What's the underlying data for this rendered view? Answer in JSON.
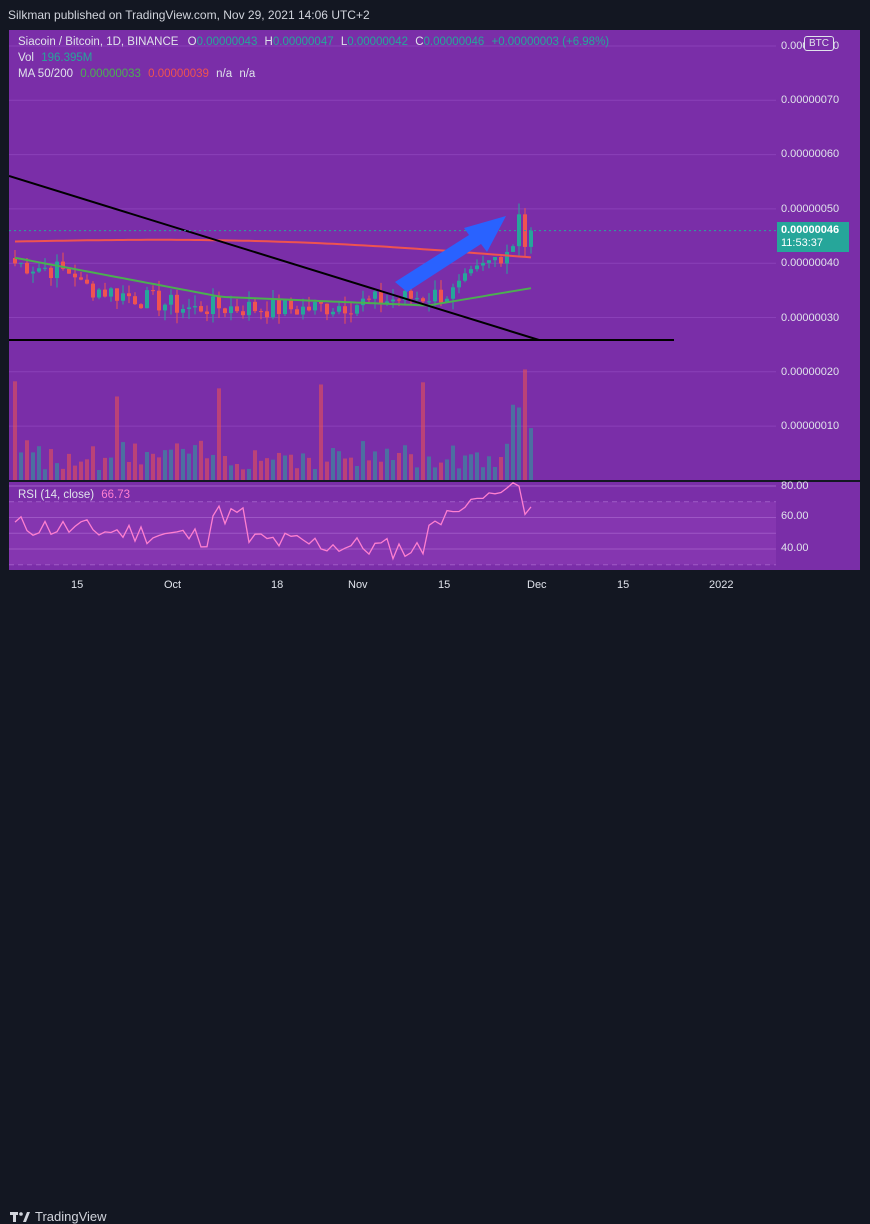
{
  "header": {
    "published_text": "Silkman published on TradingView.com, Nov 29, 2021 14:06 UTC+2"
  },
  "legend": {
    "symbol": "Siacoin / Bitcoin, 1D, BINANCE",
    "o_label": "O",
    "o_value": "0.00000043",
    "h_label": "H",
    "h_value": "0.00000047",
    "l_label": "L",
    "l_value": "0.00000042",
    "c_label": "C",
    "c_value": "0.00000046",
    "change": "+0.00000003 (+6.98%)",
    "vol_label": "Vol",
    "vol_value": "196.395M",
    "ma_label": "MA 50/200",
    "ma50": "0.00000033",
    "ma200": "0.00000039",
    "na1": "n/a",
    "na2": "n/a"
  },
  "price_scale": {
    "currency": "BTC",
    "ticks": [
      "0.00000080",
      "0.00000070",
      "0.00000060",
      "0.00000050",
      "0.00000040",
      "0.00000030",
      "0.00000020",
      "0.00000010"
    ],
    "current_price": "0.00000046",
    "countdown": "11:53:37"
  },
  "rsi": {
    "label": "RSI (14, close)",
    "value": "66.73",
    "ticks": [
      "80.00",
      "60.00",
      "40.00"
    ]
  },
  "time_axis": {
    "ticks": [
      "15",
      "Oct",
      "18",
      "Nov",
      "15",
      "Dec",
      "15",
      "2022"
    ]
  },
  "footer": {
    "brand": "TradingView"
  },
  "colors": {
    "background": "#7a2ea8",
    "up": "#26a69a",
    "down": "#ef5350",
    "ma50": "#4caf50",
    "ma200": "#ef5350",
    "rsi": "#ff7fd0",
    "arrow": "#2962ff"
  },
  "chart_data": {
    "type": "candlestick",
    "title": "Siacoin / Bitcoin, 1D, BINANCE",
    "ylim": [
      0.0,
      8e-07
    ],
    "last_close": 4.6e-07,
    "ma50_last": 3.3e-07,
    "ma200_last": 3.9e-07
  }
}
